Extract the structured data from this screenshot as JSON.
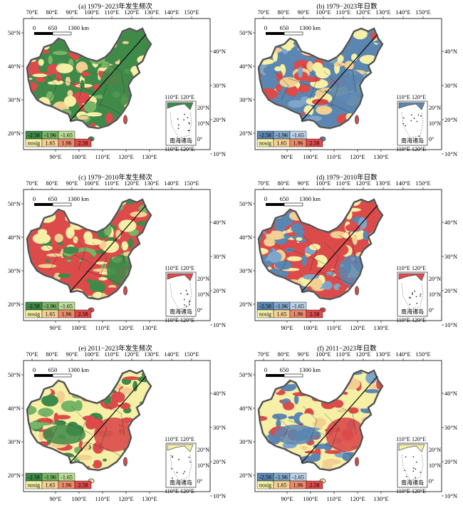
{
  "colors": {
    "neg_strong": "#3f8a48",
    "neg_mid": "#78b466",
    "neg_light": "#b9dc95",
    "nosig": "#f6f0a6",
    "pos_light": "#f3cf92",
    "pos_mid": "#ec8a6c",
    "pos_strong": "#dc4a4a",
    "days_neg_strong": "#5a86b1",
    "days_neg_mid": "#7fa5c8",
    "days_neg_light": "#b9d1e6"
  },
  "ticks": {
    "top": [
      "70°E",
      "80°E",
      "90°E",
      "100°E",
      "110°E",
      "120°E",
      "130°E",
      "140°E",
      "150°E"
    ],
    "bottom": [
      "90°E",
      "100°E",
      "110°E",
      "120°E",
      "130°E"
    ],
    "left": [
      "50°N",
      "40°N",
      "30°N",
      "20°N"
    ],
    "right": [
      "40°N",
      "30°N",
      "20°N",
      "10°N"
    ]
  },
  "scalebar": {
    "zero": "0",
    "mid": "650",
    "end": "1300 km"
  },
  "inset": {
    "top_ticks": [
      "110°E",
      "120°E"
    ],
    "bottom_ticks": [
      "110°E",
      "120°E"
    ],
    "right_ticks": [
      "20°N",
      "10°N",
      "0°"
    ],
    "label": "南海诸岛"
  },
  "legend": {
    "row1": [
      "-2.58",
      "-1.96",
      "-1.65"
    ],
    "row2": [
      "nosig",
      "1.65",
      "1.96",
      "2.58"
    ]
  },
  "panels": [
    {
      "title": "(a) 1979−2023年发生频次",
      "scheme": "freq",
      "dominant": "neg"
    },
    {
      "title": "(b) 1979−2023年日数",
      "scheme": "days",
      "dominant": "neg"
    },
    {
      "title": "(c) 1979−2010年发生频次",
      "scheme": "freq",
      "dominant": "pos"
    },
    {
      "title": "(d) 1979−2010年日数",
      "scheme": "days",
      "dominant": "pos"
    },
    {
      "title": "(e) 2011−2023年发生频次",
      "scheme": "freq",
      "dominant": "mixed"
    },
    {
      "title": "(f) 2011−2023年日数",
      "scheme": "days",
      "dominant": "mixed"
    }
  ]
}
